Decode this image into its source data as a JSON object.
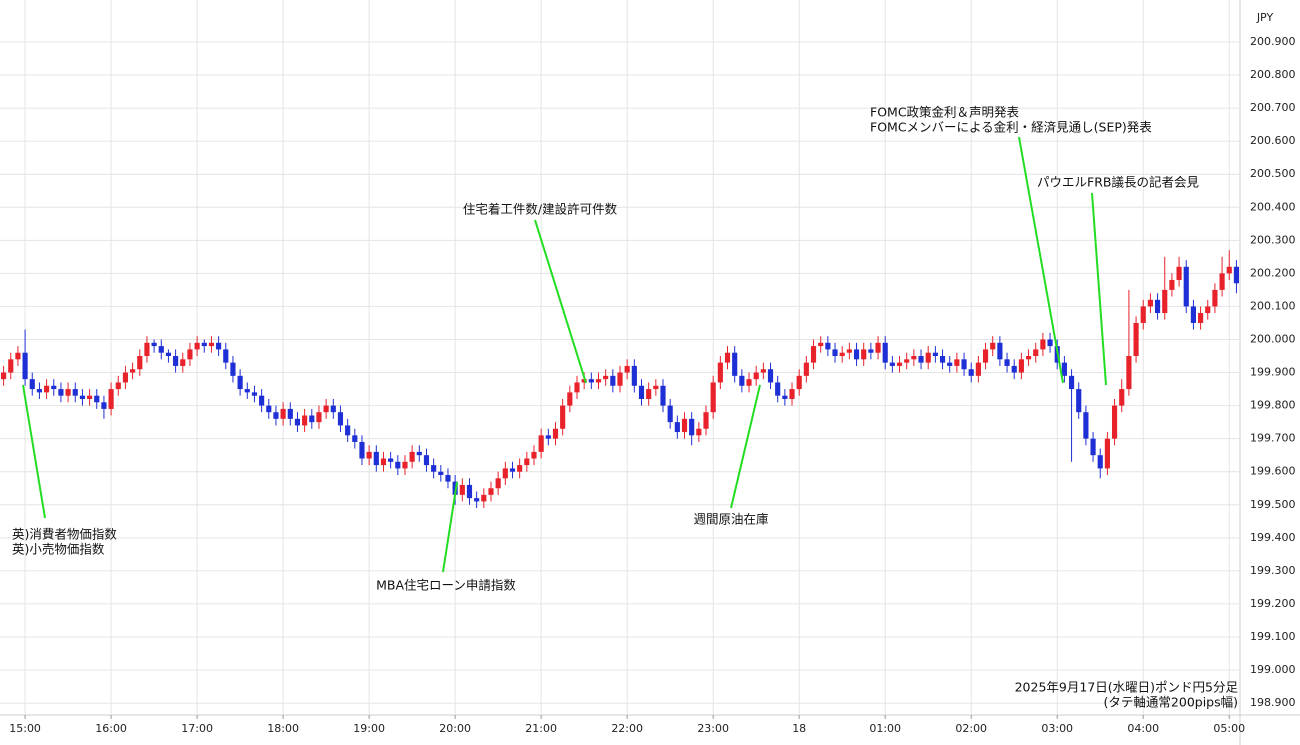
{
  "chart_data": {
    "type": "candlestick",
    "y_unit": "JPY",
    "up_color": "#e8222b",
    "down_color": "#1f2fd6",
    "grid": true,
    "ylim": [
      198.864,
      201.027
    ],
    "yticks": [
      {
        "value": 198.9,
        "label": "198.900"
      },
      {
        "value": 199.0,
        "label": "199.000"
      },
      {
        "value": 199.1,
        "label": "199.100"
      },
      {
        "value": 199.2,
        "label": "199.200"
      },
      {
        "value": 199.3,
        "label": "199.300"
      },
      {
        "value": 199.4,
        "label": "199.400"
      },
      {
        "value": 199.5,
        "label": "199.500"
      },
      {
        "value": 199.6,
        "label": "199.600"
      },
      {
        "value": 199.7,
        "label": "199.700"
      },
      {
        "value": 199.8,
        "label": "199.800"
      },
      {
        "value": 199.9,
        "label": "199.900"
      },
      {
        "value": 200.0,
        "label": "200.000"
      },
      {
        "value": 200.1,
        "label": "200.100"
      },
      {
        "value": 200.2,
        "label": "200.200"
      },
      {
        "value": 200.3,
        "label": "200.300"
      },
      {
        "value": 200.4,
        "label": "200.400"
      },
      {
        "value": 200.5,
        "label": "200.500"
      },
      {
        "value": 200.6,
        "label": "200.600"
      },
      {
        "value": 200.7,
        "label": "200.700"
      },
      {
        "value": 200.8,
        "label": "200.800"
      },
      {
        "value": 200.9,
        "label": "200.900"
      }
    ],
    "xlim": [
      -0.5,
      172.5
    ],
    "xticks": [
      {
        "value": 3,
        "label": "15:00"
      },
      {
        "value": 15,
        "label": "16:00"
      },
      {
        "value": 27,
        "label": "17:00"
      },
      {
        "value": 39,
        "label": "18:00"
      },
      {
        "value": 51,
        "label": "19:00"
      },
      {
        "value": 63,
        "label": "20:00"
      },
      {
        "value": 75,
        "label": "21:00"
      },
      {
        "value": 87,
        "label": "22:00"
      },
      {
        "value": 99,
        "label": "23:00"
      },
      {
        "value": 111,
        "label": "18"
      },
      {
        "value": 123,
        "label": "01:00"
      },
      {
        "value": 135,
        "label": "02:00"
      },
      {
        "value": 147,
        "label": "03:00"
      },
      {
        "value": 159,
        "label": "04:00"
      },
      {
        "value": 171,
        "label": "05:00"
      }
    ],
    "close": [
      199.9,
      199.94,
      199.96,
      199.88,
      199.85,
      199.84,
      199.86,
      199.85,
      199.83,
      199.85,
      199.83,
      199.82,
      199.83,
      199.81,
      199.79,
      199.85,
      199.87,
      199.9,
      199.91,
      199.95,
      199.99,
      199.98,
      199.96,
      199.95,
      199.92,
      199.94,
      199.97,
      199.99,
      199.98,
      199.99,
      199.97,
      199.93,
      199.89,
      199.85,
      199.84,
      199.83,
      199.8,
      199.78,
      199.76,
      199.79,
      199.76,
      199.74,
      199.77,
      199.75,
      199.78,
      199.8,
      199.78,
      199.74,
      199.71,
      199.69,
      199.64,
      199.66,
      199.62,
      199.64,
      199.63,
      199.61,
      199.63,
      199.66,
      199.65,
      199.62,
      199.6,
      199.59,
      199.57,
      199.53,
      199.56,
      199.52,
      199.51,
      199.53,
      199.55,
      199.58,
      199.61,
      199.6,
      199.62,
      199.64,
      199.66,
      199.71,
      199.7,
      199.73,
      199.8,
      199.84,
      199.87,
      199.88,
      199.87,
      199.88,
      199.89,
      199.86,
      199.9,
      199.92,
      199.86,
      199.82,
      199.85,
      199.86,
      199.8,
      199.75,
      199.72,
      199.76,
      199.71,
      199.73,
      199.78,
      199.87,
      199.93,
      199.96,
      199.89,
      199.86,
      199.88,
      199.9,
      199.91,
      199.87,
      199.83,
      199.82,
      199.85,
      199.89,
      199.93,
      199.98,
      199.99,
      199.97,
      199.95,
      199.96,
      199.97,
      199.94,
      199.97,
      199.96,
      199.99,
      199.93,
      199.92,
      199.93,
      199.94,
      199.95,
      199.93,
      199.96,
      199.95,
      199.93,
      199.92,
      199.94,
      199.91,
      199.89,
      199.93,
      199.97,
      199.99,
      199.94,
      199.92,
      199.9,
      199.94,
      199.95,
      199.97,
      200.0,
      199.98,
      199.93,
      199.89,
      199.85,
      199.78,
      199.7,
      199.65,
      199.61,
      199.7,
      199.8,
      199.85,
      199.95,
      200.05,
      200.1,
      200.12,
      200.08,
      200.15,
      200.18,
      200.22,
      200.1,
      200.05,
      200.08,
      200.1,
      200.15,
      200.2,
      200.22,
      200.17
    ],
    "open": [
      199.88,
      199.9,
      199.94,
      199.96,
      199.88,
      199.85,
      199.84,
      199.86,
      199.85,
      199.83,
      199.85,
      199.83,
      199.82,
      199.83,
      199.81,
      199.79,
      199.85,
      199.87,
      199.9,
      199.91,
      199.95,
      199.99,
      199.98,
      199.96,
      199.95,
      199.92,
      199.94,
      199.97,
      199.99,
      199.98,
      199.99,
      199.97,
      199.93,
      199.89,
      199.85,
      199.84,
      199.83,
      199.8,
      199.78,
      199.76,
      199.79,
      199.76,
      199.74,
      199.77,
      199.75,
      199.78,
      199.8,
      199.78,
      199.74,
      199.71,
      199.69,
      199.64,
      199.66,
      199.62,
      199.64,
      199.63,
      199.61,
      199.63,
      199.66,
      199.65,
      199.62,
      199.6,
      199.59,
      199.57,
      199.53,
      199.56,
      199.52,
      199.51,
      199.53,
      199.55,
      199.58,
      199.61,
      199.6,
      199.62,
      199.64,
      199.66,
      199.71,
      199.7,
      199.73,
      199.8,
      199.84,
      199.87,
      199.88,
      199.87,
      199.88,
      199.89,
      199.86,
      199.9,
      199.92,
      199.86,
      199.82,
      199.85,
      199.86,
      199.8,
      199.75,
      199.72,
      199.76,
      199.71,
      199.73,
      199.78,
      199.87,
      199.93,
      199.96,
      199.89,
      199.86,
      199.88,
      199.9,
      199.91,
      199.87,
      199.83,
      199.82,
      199.85,
      199.89,
      199.93,
      199.98,
      199.99,
      199.97,
      199.95,
      199.96,
      199.97,
      199.94,
      199.97,
      199.96,
      199.99,
      199.93,
      199.92,
      199.93,
      199.94,
      199.95,
      199.93,
      199.96,
      199.95,
      199.93,
      199.92,
      199.94,
      199.91,
      199.89,
      199.93,
      199.97,
      199.99,
      199.94,
      199.92,
      199.9,
      199.94,
      199.95,
      199.97,
      200.0,
      199.98,
      199.93,
      199.89,
      199.85,
      199.78,
      199.7,
      199.65,
      199.61,
      199.7,
      199.8,
      199.85,
      199.95,
      200.05,
      200.1,
      200.12,
      200.08,
      200.15,
      200.18,
      200.22,
      200.1,
      200.05,
      200.08,
      200.1,
      200.15,
      200.2,
      200.22
    ],
    "high": [
      199.92,
      199.96,
      199.98,
      200.03,
      199.9,
      199.87,
      199.88,
      199.88,
      199.87,
      199.87,
      199.87,
      199.85,
      199.85,
      199.85,
      199.83,
      199.87,
      199.89,
      199.92,
      199.93,
      199.97,
      200.01,
      200.0,
      200.0,
      199.97,
      199.97,
      199.96,
      199.99,
      200.01,
      200.0,
      200.01,
      200.01,
      199.99,
      199.95,
      199.91,
      199.87,
      199.86,
      199.85,
      199.82,
      199.8,
      199.81,
      199.81,
      199.78,
      199.79,
      199.79,
      199.8,
      199.82,
      199.82,
      199.8,
      199.76,
      199.73,
      199.71,
      199.68,
      199.68,
      199.66,
      199.66,
      199.65,
      199.65,
      199.68,
      199.68,
      199.67,
      199.64,
      199.62,
      199.61,
      199.59,
      199.58,
      199.58,
      199.54,
      199.55,
      199.57,
      199.6,
      199.63,
      199.63,
      199.64,
      199.66,
      199.68,
      199.73,
      199.73,
      199.75,
      199.82,
      199.86,
      199.89,
      199.9,
      199.9,
      199.9,
      199.91,
      199.91,
      199.92,
      199.94,
      199.94,
      199.88,
      199.87,
      199.88,
      199.88,
      199.82,
      199.77,
      199.78,
      199.78,
      199.75,
      199.8,
      199.89,
      199.95,
      199.98,
      199.98,
      199.91,
      199.9,
      199.92,
      199.93,
      199.93,
      199.89,
      199.85,
      199.87,
      199.91,
      199.95,
      200.0,
      200.01,
      200.01,
      199.99,
      199.98,
      199.99,
      199.99,
      199.99,
      199.99,
      200.01,
      200.01,
      199.95,
      199.95,
      199.96,
      199.97,
      199.97,
      199.98,
      199.98,
      199.97,
      199.95,
      199.96,
      199.96,
      199.93,
      199.95,
      199.99,
      200.01,
      200.01,
      199.96,
      199.94,
      199.96,
      199.97,
      199.99,
      200.02,
      200.02,
      200.0,
      199.95,
      199.91,
      199.87,
      199.8,
      199.72,
      199.67,
      199.72,
      199.82,
      199.88,
      200.15,
      200.07,
      200.12,
      200.14,
      200.14,
      200.25,
      200.2,
      200.25,
      200.24,
      200.12,
      200.1,
      200.12,
      200.17,
      200.25,
      200.27,
      200.24
    ],
    "low": [
      199.86,
      199.88,
      199.92,
      199.86,
      199.83,
      199.82,
      199.82,
      199.83,
      199.81,
      199.81,
      199.81,
      199.8,
      199.8,
      199.79,
      199.76,
      199.77,
      199.83,
      199.85,
      199.88,
      199.89,
      199.93,
      199.96,
      199.94,
      199.93,
      199.9,
      199.9,
      199.92,
      199.95,
      199.96,
      199.96,
      199.95,
      199.91,
      199.87,
      199.83,
      199.82,
      199.81,
      199.78,
      199.76,
      199.74,
      199.74,
      199.74,
      199.72,
      199.72,
      199.73,
      199.73,
      199.76,
      199.76,
      199.72,
      199.69,
      199.67,
      199.62,
      199.62,
      199.6,
      199.6,
      199.61,
      199.59,
      199.59,
      199.61,
      199.63,
      199.6,
      199.58,
      199.57,
      199.55,
      199.5,
      199.51,
      199.5,
      199.49,
      199.49,
      199.51,
      199.53,
      199.56,
      199.58,
      199.58,
      199.6,
      199.62,
      199.64,
      199.68,
      199.68,
      199.71,
      199.78,
      199.82,
      199.85,
      199.85,
      199.85,
      199.86,
      199.84,
      199.84,
      199.88,
      199.84,
      199.8,
      199.8,
      199.83,
      199.78,
      199.73,
      199.7,
      199.7,
      199.68,
      199.69,
      199.71,
      199.76,
      199.85,
      199.91,
      199.87,
      199.84,
      199.84,
      199.86,
      199.88,
      199.85,
      199.81,
      199.8,
      199.8,
      199.83,
      199.87,
      199.91,
      199.96,
      199.95,
      199.93,
      199.93,
      199.94,
      199.92,
      199.92,
      199.94,
      199.94,
      199.91,
      199.9,
      199.9,
      199.91,
      199.92,
      199.91,
      199.91,
      199.93,
      199.91,
      199.9,
      199.9,
      199.89,
      199.87,
      199.87,
      199.91,
      199.95,
      199.92,
      199.9,
      199.88,
      199.88,
      199.92,
      199.93,
      199.95,
      199.96,
      199.91,
      199.87,
      199.63,
      199.76,
      199.68,
      199.63,
      199.58,
      199.59,
      199.68,
      199.78,
      199.83,
      199.93,
      200.03,
      200.08,
      200.06,
      200.06,
      200.13,
      200.16,
      200.08,
      200.03,
      200.03,
      200.06,
      200.08,
      200.13,
      200.18,
      200.14
    ],
    "annotations": [
      [
        "英)消費者物価指数",
        "英)小売物価指数"
      ],
      [
        "MBA住宅ローン申請指数"
      ],
      [
        "住宅着工件数/建設許可件数"
      ],
      [
        "週間原油在庫"
      ],
      [
        "FOMC政策金利＆声明発表",
        "FOMCメンバーによる金利・経済見通し(SEP)発表"
      ],
      [
        "パウエルFRB議長の記者会見"
      ]
    ],
    "note": [
      "2025年9月17日(水曜日)ポンド円5分足",
      "(タテ軸通常200pips幅)"
    ]
  }
}
